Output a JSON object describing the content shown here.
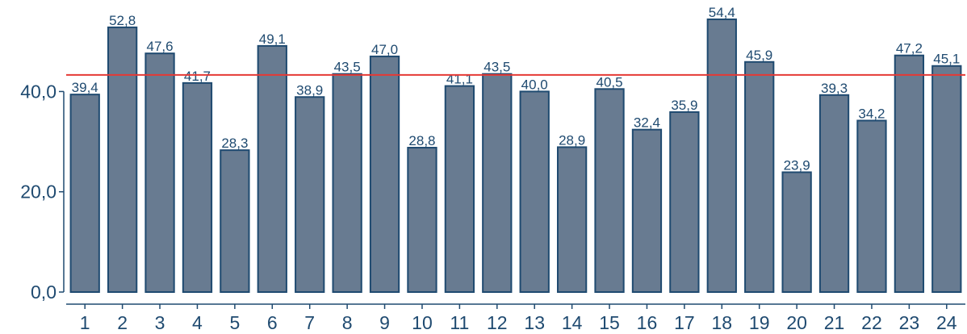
{
  "chart_data": {
    "type": "bar",
    "title": "",
    "xlabel": "",
    "ylabel": "",
    "categories": [
      "1",
      "2",
      "3",
      "4",
      "5",
      "6",
      "7",
      "8",
      "9",
      "10",
      "11",
      "12",
      "13",
      "14",
      "15",
      "16",
      "17",
      "18",
      "19",
      "20",
      "21",
      "22",
      "23",
      "24"
    ],
    "values": [
      39.4,
      52.8,
      47.6,
      41.7,
      28.3,
      49.1,
      38.9,
      43.5,
      47.0,
      28.8,
      41.1,
      43.5,
      40.0,
      28.9,
      40.5,
      32.4,
      35.9,
      54.4,
      45.9,
      23.9,
      39.3,
      34.2,
      47.2,
      45.1
    ],
    "value_labels": [
      "39,4",
      "52,8",
      "47,6",
      "41,7",
      "28,3",
      "49,1",
      "38,9",
      "43,5",
      "47,0",
      "28,8",
      "41,1",
      "43,5",
      "40,0",
      "28,9",
      "40,5",
      "32,4",
      "35,9",
      "54,4",
      "45,9",
      "23,9",
      "39,3",
      "34,2",
      "47,2",
      "45,1"
    ],
    "y_ticks": [
      0,
      20,
      40
    ],
    "y_tick_labels": [
      "0,0",
      "20,0",
      "40,0"
    ],
    "ylim": [
      0,
      56
    ],
    "reference_line": 43.3,
    "grid": false,
    "legend": "none",
    "colors": {
      "bar_fill": "#687b91",
      "bar_stroke": "#1f4a70",
      "text": "#1f4a70",
      "reference_line": "#e53935"
    }
  }
}
